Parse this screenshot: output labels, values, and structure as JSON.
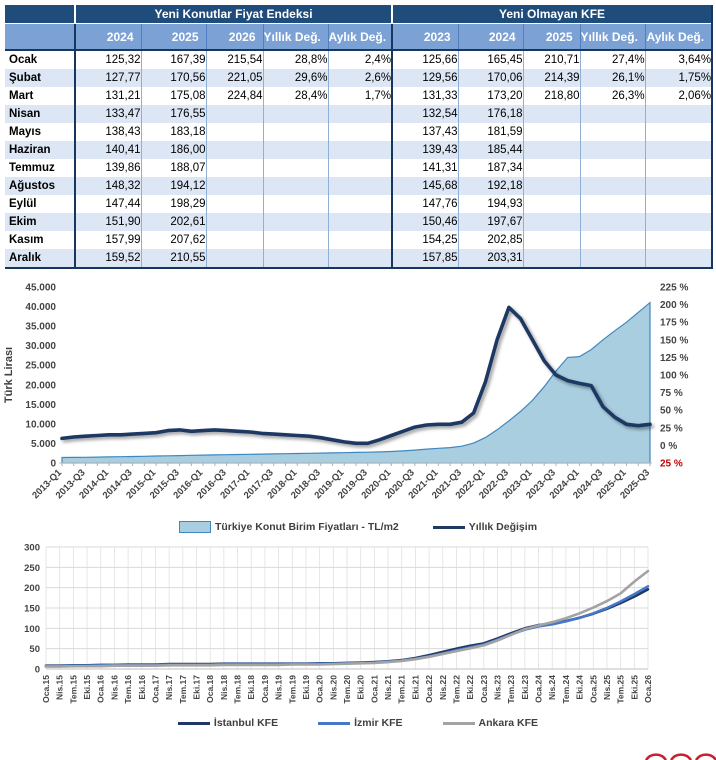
{
  "table": {
    "group_headers": {
      "left": "Yeni Konutlar Fiyat Endeksi",
      "right": "Yeni Olmayan KFE"
    },
    "col_headers": {
      "new": [
        "2024",
        "2025",
        "2026",
        "Yıllık Değ.",
        "Aylık Değ."
      ],
      "old": [
        "2023",
        "2024",
        "2025",
        "Yıllık Değ.",
        "Aylık Değ."
      ]
    },
    "rows": [
      {
        "month": "Ocak",
        "cells": [
          "125,32",
          "167,39",
          "215,54",
          "28,8%",
          "2,4%",
          "125,66",
          "165,45",
          "210,71",
          "27,4%",
          "3,64%"
        ]
      },
      {
        "month": "Şubat",
        "cells": [
          "127,77",
          "170,56",
          "221,05",
          "29,6%",
          "2,6%",
          "129,56",
          "170,06",
          "214,39",
          "26,1%",
          "1,75%"
        ]
      },
      {
        "month": "Mart",
        "cells": [
          "131,21",
          "175,08",
          "224,84",
          "28,4%",
          "1,7%",
          "131,33",
          "173,20",
          "218,80",
          "26,3%",
          "2,06%"
        ]
      },
      {
        "month": "Nisan",
        "cells": [
          "133,47",
          "176,55",
          "",
          "",
          "",
          "132,54",
          "176,18",
          "",
          "",
          ""
        ]
      },
      {
        "month": "Mayıs",
        "cells": [
          "138,43",
          "183,18",
          "",
          "",
          "",
          "137,43",
          "181,59",
          "",
          "",
          ""
        ]
      },
      {
        "month": "Haziran",
        "cells": [
          "140,41",
          "186,00",
          "",
          "",
          "",
          "139,43",
          "185,44",
          "",
          "",
          ""
        ]
      },
      {
        "month": "Temmuz",
        "cells": [
          "139,86",
          "188,07",
          "",
          "",
          "",
          "141,31",
          "187,34",
          "",
          "",
          ""
        ]
      },
      {
        "month": "Ağustos",
        "cells": [
          "148,32",
          "194,12",
          "",
          "",
          "",
          "145,68",
          "192,18",
          "",
          "",
          ""
        ]
      },
      {
        "month": "Eylül",
        "cells": [
          "147,44",
          "198,29",
          "",
          "",
          "",
          "147,76",
          "194,93",
          "",
          "",
          ""
        ]
      },
      {
        "month": "Ekim",
        "cells": [
          "151,90",
          "202,61",
          "",
          "",
          "",
          "150,46",
          "197,67",
          "",
          "",
          ""
        ]
      },
      {
        "month": "Kasım",
        "cells": [
          "157,99",
          "207,62",
          "",
          "",
          "",
          "154,25",
          "202,85",
          "",
          "",
          ""
        ]
      },
      {
        "month": "Aralık",
        "cells": [
          "159,52",
          "210,55",
          "",
          "",
          "",
          "157,85",
          "203,31",
          "",
          "",
          ""
        ]
      }
    ],
    "colors": {
      "header_dark": "#1F4C7B",
      "header_medium": "#7CA1D5",
      "stripe": "#DCE6F4",
      "thick_border": "#17375E"
    }
  },
  "chart_data": [
    {
      "type": "area+line combo",
      "x": [
        "2013-Q1",
        "2013-Q2",
        "2013-Q3",
        "2013-Q4",
        "2014-Q1",
        "2014-Q2",
        "2014-Q3",
        "2014-Q4",
        "2015-Q1",
        "2015-Q2",
        "2015-Q3",
        "2015-Q4",
        "2016-Q1",
        "2016-Q2",
        "2016-Q3",
        "2016-Q4",
        "2017-Q1",
        "2017-Q2",
        "2017-Q3",
        "2017-Q4",
        "2018-Q1",
        "2018-Q2",
        "2018-Q3",
        "2018-Q4",
        "2019-Q1",
        "2019-Q2",
        "2019-Q3",
        "2019-Q4",
        "2020-Q1",
        "2020-Q2",
        "2020-Q3",
        "2020-Q4",
        "2021-Q1",
        "2021-Q2",
        "2021-Q3",
        "2021-Q4",
        "2022-Q1",
        "2022-Q2",
        "2022-Q3",
        "2022-Q4",
        "2023-Q1",
        "2023-Q2",
        "2023-Q3",
        "2023-Q4",
        "2024-Q1",
        "2024-Q2",
        "2024-Q3",
        "2024-Q4",
        "2025-Q1",
        "2025-Q2",
        "2025-Q3"
      ],
      "label_every": 2,
      "series": [
        {
          "name": "Türkiye Konut Birim Fiyatları - TL/m2",
          "type": "area",
          "axis": "left",
          "fill": "#A9CEDF",
          "stroke": "#3F87C0",
          "values": [
            1400,
            1430,
            1470,
            1520,
            1570,
            1620,
            1670,
            1720,
            1780,
            1840,
            1900,
            1960,
            2020,
            2080,
            2130,
            2180,
            2230,
            2280,
            2330,
            2380,
            2430,
            2480,
            2530,
            2580,
            2640,
            2700,
            2760,
            2850,
            2950,
            3100,
            3300,
            3550,
            3750,
            3950,
            4300,
            5100,
            6500,
            8500,
            10800,
            13200,
            16000,
            19500,
            23500,
            27000,
            27200,
            29000,
            31500,
            33800,
            36000,
            38500,
            41000
          ]
        },
        {
          "name": "Yıllık Değişim",
          "type": "line",
          "axis": "right",
          "stroke": "#1F3864",
          "values": [
            10,
            12,
            13,
            14,
            15,
            15,
            16,
            17,
            18,
            21,
            22,
            20,
            21,
            22,
            21,
            20,
            19,
            17,
            16,
            15,
            14,
            13,
            11,
            8,
            5,
            3,
            3,
            8,
            14,
            20,
            26,
            29,
            30,
            30,
            33,
            46,
            90,
            150,
            196,
            180,
            150,
            120,
            100,
            92,
            88,
            85,
            55,
            40,
            30,
            28,
            30
          ]
        }
      ],
      "left_axis": {
        "title": "Türk Lirası",
        "min": 0,
        "max": 45000,
        "step": 5000,
        "labels": [
          "45.000",
          "40.000",
          "35.000",
          "30.000",
          "25.000",
          "20.000",
          "15.000",
          "10.000",
          "5.000",
          "0"
        ]
      },
      "right_axis": {
        "min": -25,
        "max": 225,
        "step": 25,
        "labels": [
          "225 %",
          "200 %",
          "175 %",
          "150 %",
          "125 %",
          "100 %",
          "75 %",
          "50 %",
          "25 %",
          "0 %",
          "25 %"
        ],
        "last_label_color": "#C00000"
      },
      "grid": false
    },
    {
      "type": "line",
      "x": [
        "Oca.15",
        "Nis.15",
        "Tem.15",
        "Eki.15",
        "Oca.16",
        "Nis.16",
        "Tem.16",
        "Eki.16",
        "Oca.17",
        "Nis.17",
        "Tem.17",
        "Eki.17",
        "Oca.18",
        "Nis.18",
        "Tem.18",
        "Eki.18",
        "Oca.19",
        "Nis.19",
        "Tem.19",
        "Eki.19",
        "Oca.20",
        "Nis.20",
        "Tem.20",
        "Eki.20",
        "Oca.21",
        "Nis.21",
        "Tem.21",
        "Eki.21",
        "Oca.22",
        "Nis.22",
        "Tem.22",
        "Eki.22",
        "Oca.23",
        "Nis.23",
        "Tem.23",
        "Eki.23",
        "Oca.24",
        "Nis.24",
        "Tem.24",
        "Eki.24",
        "Oca.25",
        "Nis.25",
        "Tem.25",
        "Eki.25",
        "Oca.26"
      ],
      "series": [
        {
          "name": "İstanbul KFE",
          "stroke": "#1F3864",
          "values": [
            8,
            8,
            9,
            9,
            10,
            10,
            11,
            11,
            11,
            12,
            12,
            12,
            12,
            13,
            13,
            13,
            13,
            13,
            13,
            13,
            14,
            14,
            15,
            16,
            17,
            19,
            22,
            27,
            34,
            42,
            50,
            57,
            63,
            75,
            88,
            100,
            108,
            112,
            118,
            126,
            136,
            148,
            162,
            178,
            196
          ]
        },
        {
          "name": "İzmir KFE",
          "stroke": "#4478C8",
          "values": [
            7,
            7,
            8,
            8,
            9,
            9,
            10,
            10,
            10,
            11,
            11,
            11,
            11,
            12,
            12,
            12,
            12,
            12,
            12,
            12,
            13,
            13,
            14,
            15,
            16,
            18,
            21,
            25,
            31,
            38,
            46,
            53,
            60,
            72,
            85,
            97,
            105,
            110,
            117,
            126,
            137,
            150,
            166,
            184,
            203
          ]
        },
        {
          "name": "Ankara KFE",
          "stroke": "#A3A3A3",
          "values": [
            6,
            6,
            7,
            7,
            7,
            8,
            8,
            8,
            8,
            9,
            9,
            9,
            9,
            10,
            10,
            10,
            10,
            10,
            11,
            11,
            11,
            12,
            13,
            14,
            15,
            17,
            20,
            24,
            30,
            37,
            44,
            51,
            58,
            70,
            84,
            98,
            107,
            115,
            125,
            137,
            151,
            167,
            186,
            215,
            241
          ]
        }
      ],
      "y_axis": {
        "min": 0,
        "max": 300,
        "step": 50,
        "labels": [
          "300",
          "250",
          "200",
          "150",
          "100",
          "50",
          "0"
        ]
      },
      "grid": true
    }
  ],
  "logo": {
    "name": "partial-red-circles-logo",
    "color": "#C8202F"
  }
}
